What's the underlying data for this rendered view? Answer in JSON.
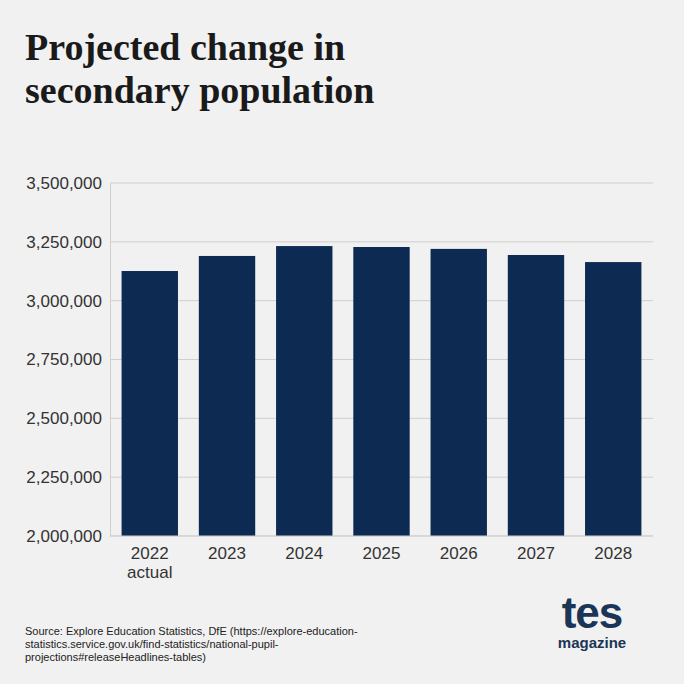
{
  "chart_data": {
    "type": "bar",
    "title": "Projected change in secondary population",
    "categories": [
      "2022 actual",
      "2023",
      "2024",
      "2025",
      "2026",
      "2027",
      "2028"
    ],
    "values": [
      3126000,
      3190000,
      3232000,
      3228000,
      3220000,
      3194000,
      3164000
    ],
    "color": "#0d2a52",
    "ylim": [
      2000000,
      3500000
    ],
    "yticks": [
      {
        "value": 2000000,
        "label": "2,000,000"
      },
      {
        "value": 2250000,
        "label": "2,250,000"
      },
      {
        "value": 2500000,
        "label": "2,500,000"
      },
      {
        "value": 2750000,
        "label": "2,750,000"
      },
      {
        "value": 3000000,
        "label": "3,000,000"
      },
      {
        "value": 3250000,
        "label": "3,250,000"
      },
      {
        "value": 3500000,
        "label": "3,500,000"
      }
    ],
    "grid": true,
    "source": "Source: Explore Education Statistics, DfE (https://explore-education-statistics.service.gov.uk/find-statistics/national-pupil-projections#releaseHeadlines-tables)",
    "brand": "tes",
    "brand_subtitle": "magazine"
  }
}
